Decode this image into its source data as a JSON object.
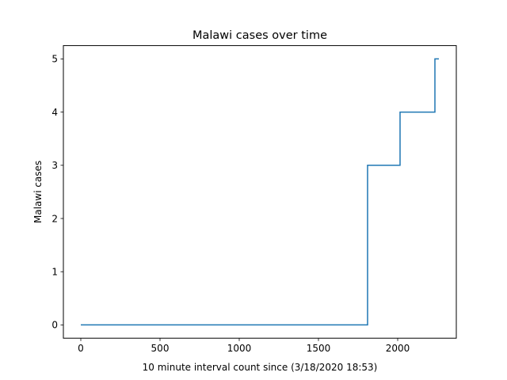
{
  "chart_data": {
    "type": "line",
    "title": "Malawi cases over time",
    "xlabel": "10 minute interval count since (3/18/2020 18:53)",
    "ylabel": "Malawi cases",
    "xlim": [
      -110,
      2370
    ],
    "ylim": [
      -0.25,
      5.25
    ],
    "xticks": [
      0,
      500,
      1000,
      1500,
      2000
    ],
    "yticks": [
      0,
      1,
      2,
      3,
      4,
      5
    ],
    "grid": false,
    "series": [
      {
        "color": "#1f77b4",
        "step": "post",
        "x": [
          0,
          1810,
          2015,
          2235,
          2260
        ],
        "y": [
          0,
          3,
          4,
          5,
          5
        ]
      }
    ]
  }
}
